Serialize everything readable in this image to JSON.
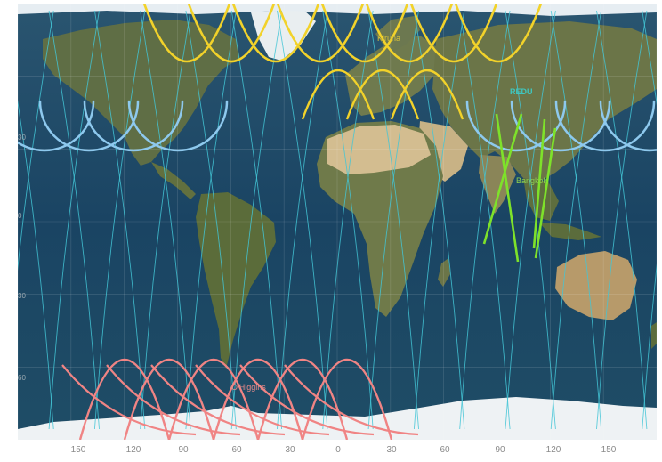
{
  "map": {
    "lon_labels": [
      "150",
      "120",
      "90",
      "60",
      "30",
      "0",
      "30",
      "60",
      "90",
      "120",
      "150"
    ],
    "lat_labels": [
      "30",
      "0",
      "30",
      "60"
    ],
    "places": [
      {
        "name": "Kiruna",
        "color": "#d8c23a"
      },
      {
        "name": "REDU",
        "color": "#3fc7c0"
      },
      {
        "name": "Bangkok",
        "color": "#8fd14f"
      },
      {
        "name": "O'Higgins",
        "color": "#e98a8a"
      }
    ],
    "colors": {
      "ground_track": "#43c6d6",
      "arctic_track": "#8ec9ee",
      "kiruna_pass": "#f2d22a",
      "bangkok_pass": "#7ee22a",
      "ohiggins_pass": "#f08484",
      "ocean": "#1d4868",
      "land": "#6e7a4e",
      "desert": "#c9b58a",
      "ice": "#eef2f4"
    }
  }
}
